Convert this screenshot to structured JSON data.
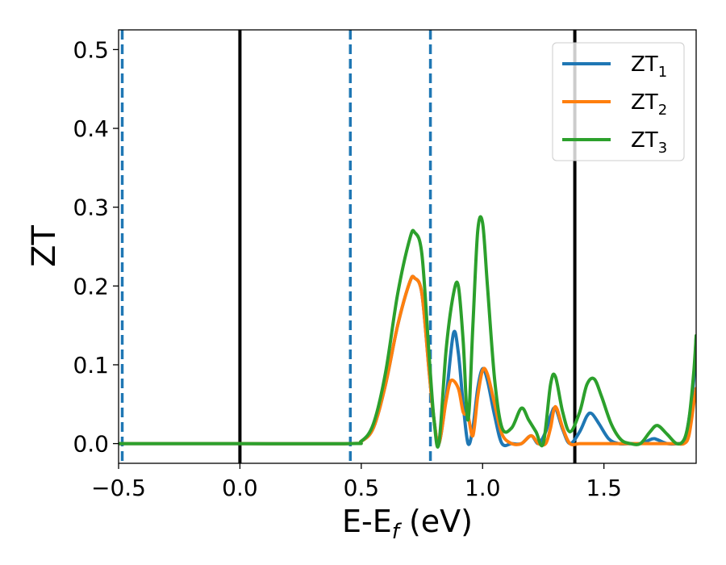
{
  "chart_data": {
    "type": "line",
    "xlabel": "E-E",
    "xlabel_sub": "f",
    "xlabel_unit": " (eV)",
    "ylabel": "ZT",
    "xlim": [
      -0.5,
      1.88
    ],
    "ylim": [
      -0.025,
      0.525
    ],
    "xticks": [
      -0.5,
      0.0,
      0.5,
      1.0,
      1.5
    ],
    "xtick_labels": [
      "−0.5",
      "0.0",
      "0.5",
      "1.0",
      "1.5"
    ],
    "yticks": [
      0.0,
      0.1,
      0.2,
      0.3,
      0.4,
      0.5
    ],
    "ytick_labels": [
      "0.0",
      "0.1",
      "0.2",
      "0.3",
      "0.4",
      "0.5"
    ],
    "grid": false,
    "legend_position": "top-right",
    "vlines": [
      {
        "x": -0.485,
        "style": "dashed",
        "color": "#1f77b4"
      },
      {
        "x": 0.0,
        "style": "solid",
        "color": "#000000"
      },
      {
        "x": 0.455,
        "style": "dashed",
        "color": "#1f77b4"
      },
      {
        "x": 0.785,
        "style": "dashed",
        "color": "#1f77b4"
      },
      {
        "x": 1.38,
        "style": "solid",
        "color": "#000000"
      }
    ],
    "series": [
      {
        "name": "ZT",
        "sub": "1",
        "color": "#1f77b4",
        "x": [
          -0.5,
          0.0,
          0.45,
          0.5,
          0.55,
          0.6,
          0.65,
          0.7,
          0.72,
          0.75,
          0.78,
          0.8,
          0.82,
          0.85,
          0.88,
          0.9,
          0.92,
          0.94,
          0.96,
          0.98,
          1.0,
          1.02,
          1.05,
          1.08,
          1.12,
          1.16,
          1.2,
          1.23,
          1.26,
          1.28,
          1.3,
          1.33,
          1.36,
          1.4,
          1.43,
          1.45,
          1.48,
          1.52,
          1.56,
          1.6,
          1.65,
          1.7,
          1.72,
          1.76,
          1.8,
          1.83,
          1.85,
          1.87,
          1.88
        ],
        "y": [
          0.0,
          0.0,
          0.0,
          0.003,
          0.02,
          0.075,
          0.15,
          0.205,
          0.21,
          0.19,
          0.09,
          0.03,
          0.0,
          0.06,
          0.14,
          0.115,
          0.05,
          0.0,
          0.02,
          0.07,
          0.095,
          0.08,
          0.035,
          0.0,
          0.0,
          0.0,
          0.01,
          0.0,
          0.015,
          0.035,
          0.045,
          0.018,
          0.0,
          0.015,
          0.035,
          0.038,
          0.025,
          0.006,
          0.0,
          0.0,
          0.0,
          0.006,
          0.005,
          0.0,
          0.0,
          0.003,
          0.03,
          0.08,
          0.135
        ]
      },
      {
        "name": "ZT",
        "sub": "2",
        "color": "#ff7f0e",
        "x": [
          -0.5,
          0.0,
          0.45,
          0.5,
          0.55,
          0.6,
          0.65,
          0.7,
          0.72,
          0.75,
          0.78,
          0.8,
          0.82,
          0.85,
          0.87,
          0.9,
          0.92,
          0.94,
          0.96,
          0.98,
          1.0,
          1.02,
          1.05,
          1.08,
          1.12,
          1.16,
          1.2,
          1.23,
          1.26,
          1.28,
          1.3,
          1.33,
          1.36,
          1.4,
          1.45,
          1.5,
          1.55,
          1.6,
          1.65,
          1.7,
          1.72,
          1.76,
          1.8,
          1.83,
          1.85,
          1.87,
          1.88
        ],
        "y": [
          0.0,
          0.0,
          0.0,
          0.003,
          0.02,
          0.075,
          0.15,
          0.205,
          0.21,
          0.19,
          0.09,
          0.03,
          0.0,
          0.055,
          0.08,
          0.07,
          0.04,
          0.035,
          0.01,
          0.06,
          0.093,
          0.088,
          0.05,
          0.012,
          0.0,
          0.0,
          0.01,
          0.0,
          0.0,
          0.02,
          0.047,
          0.02,
          0.0,
          0.0,
          0.0,
          0.0,
          0.0,
          0.0,
          0.0,
          0.0,
          0.0,
          0.0,
          0.0,
          0.0,
          0.01,
          0.05,
          0.07
        ]
      },
      {
        "name": "ZT",
        "sub": "3",
        "color": "#2ca02c",
        "x": [
          -0.5,
          0.0,
          0.45,
          0.5,
          0.55,
          0.6,
          0.65,
          0.7,
          0.72,
          0.75,
          0.78,
          0.8,
          0.82,
          0.85,
          0.88,
          0.9,
          0.92,
          0.94,
          0.96,
          0.98,
          1.0,
          1.02,
          1.05,
          1.08,
          1.12,
          1.16,
          1.19,
          1.22,
          1.25,
          1.28,
          1.3,
          1.33,
          1.36,
          1.4,
          1.43,
          1.46,
          1.49,
          1.53,
          1.57,
          1.61,
          1.65,
          1.69,
          1.72,
          1.76,
          1.8,
          1.83,
          1.85,
          1.87,
          1.88
        ],
        "y": [
          0.0,
          0.0,
          0.0,
          0.003,
          0.025,
          0.09,
          0.19,
          0.26,
          0.268,
          0.24,
          0.11,
          0.03,
          0.0,
          0.12,
          0.19,
          0.2,
          0.13,
          0.03,
          0.15,
          0.27,
          0.28,
          0.2,
          0.08,
          0.02,
          0.02,
          0.045,
          0.03,
          0.015,
          0.0,
          0.075,
          0.085,
          0.04,
          0.015,
          0.04,
          0.075,
          0.082,
          0.06,
          0.025,
          0.005,
          0.0,
          0.0,
          0.015,
          0.023,
          0.012,
          0.0,
          0.005,
          0.03,
          0.09,
          0.137
        ]
      }
    ]
  }
}
